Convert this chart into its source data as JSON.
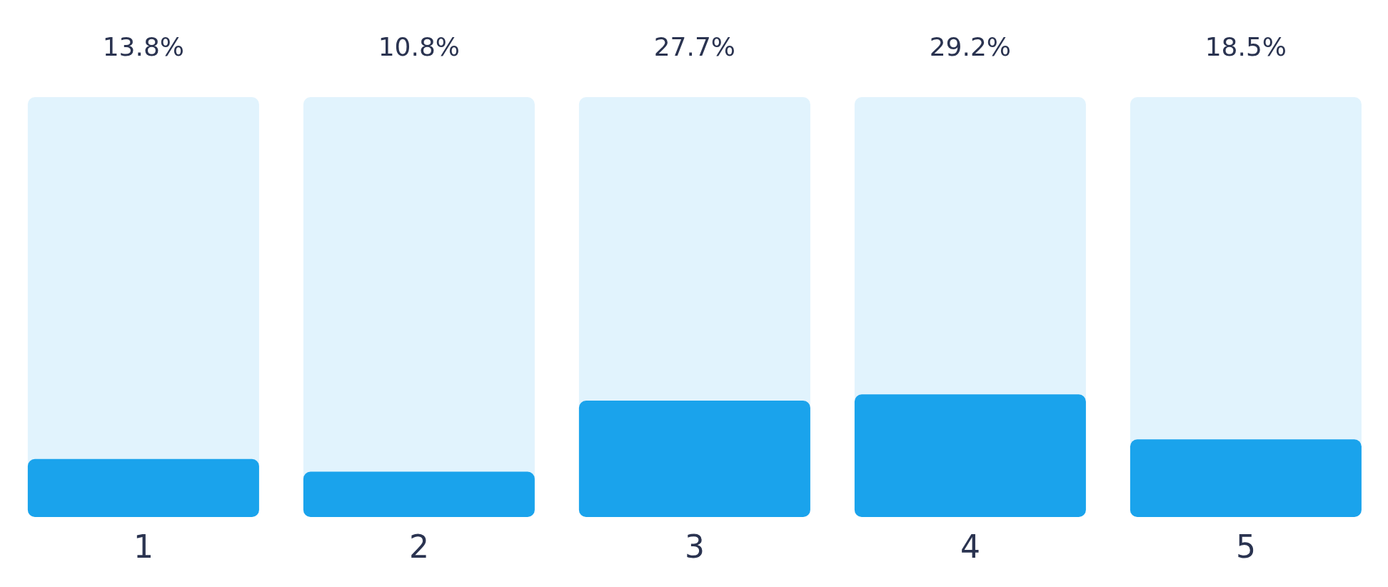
{
  "chart_data": {
    "type": "bar",
    "categories": [
      "1",
      "2",
      "3",
      "4",
      "5"
    ],
    "values": [
      13.8,
      10.8,
      27.7,
      29.2,
      18.5
    ],
    "color": "#1aa3ec",
    "ylim": [
      0,
      100
    ],
    "tick_labels": "x",
    "value_labels": [
      "13.8%",
      "10.8%",
      "27.7%",
      "29.2%",
      "18.5%"
    ],
    "grid": false,
    "legend": false
  }
}
